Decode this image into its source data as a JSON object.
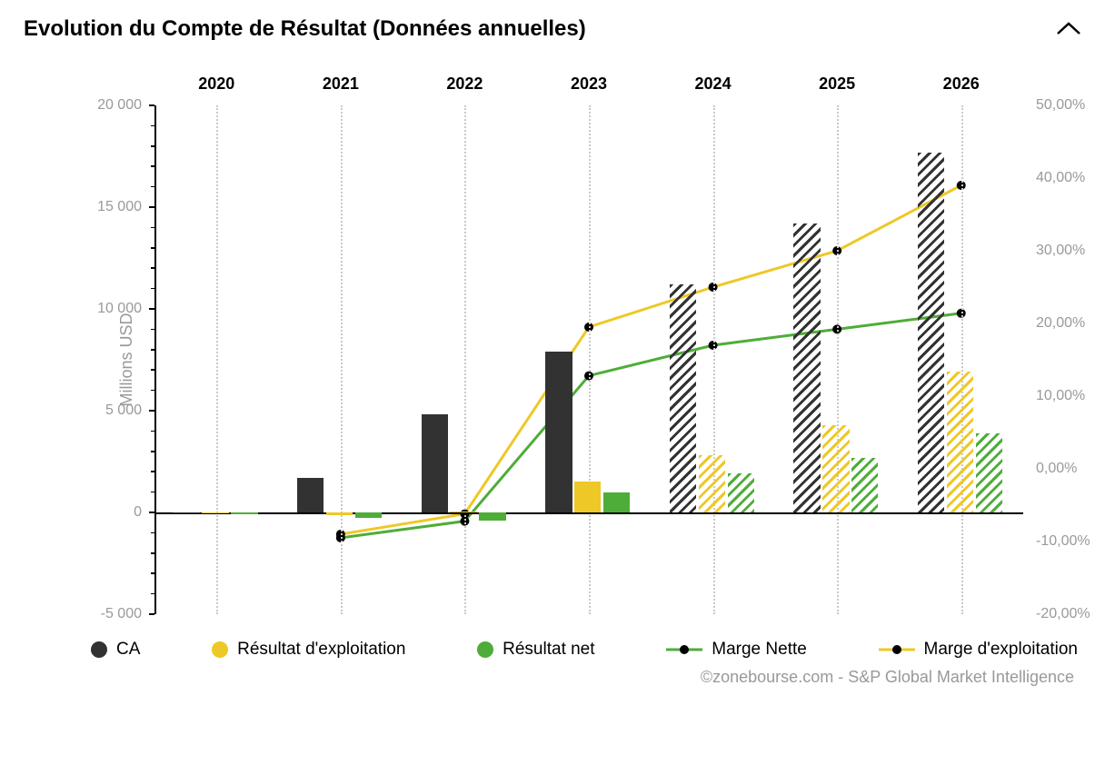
{
  "title": "Evolution du Compte de Résultat (Données annuelles)",
  "attribution": "©zonebourse.com - S&P Global Market Intelligence",
  "chart": {
    "type": "bar+line",
    "background_color": "#ffffff",
    "years": [
      "2020",
      "2021",
      "2022",
      "2023",
      "2024",
      "2025",
      "2026"
    ],
    "solidFrom": 0,
    "hatchedFrom": 4,
    "y_left": {
      "label": "Millions USD",
      "min": -5000,
      "max": 20000,
      "major_ticks": [
        -5000,
        0,
        5000,
        10000,
        15000,
        20000
      ],
      "minor_ticks": [
        -4000,
        -3000,
        -2000,
        -1000,
        1000,
        2000,
        3000,
        4000,
        6000,
        7000,
        8000,
        9000,
        11000,
        12000,
        13000,
        14000,
        16000,
        17000,
        18000,
        19000
      ],
      "tick_labels": [
        "-5 000",
        "0",
        "5 000",
        "10 000",
        "15 000",
        "20 000"
      ],
      "label_color": "#999999",
      "label_fontsize": 18
    },
    "y_right": {
      "min": -20,
      "max": 50,
      "major_ticks": [
        -20,
        -10,
        0,
        10,
        20,
        30,
        40,
        50
      ],
      "tick_labels": [
        "-20,00%",
        "-10,00%",
        "0,00%",
        "10,00%",
        "20,00%",
        "30,00%",
        "40,00%",
        "50,00%"
      ],
      "label_color": "#999999"
    },
    "grid_color": "#c9c9c9",
    "bars": {
      "group_width_frac": 0.7,
      "series": [
        {
          "key": "ca",
          "label": "CA",
          "color": "#323232",
          "values": [
            0,
            1700,
            4800,
            7900,
            11200,
            14200,
            17700
          ]
        },
        {
          "key": "rex",
          "label": "Résultat d'exploitation",
          "color": "#eec826",
          "values": [
            0,
            -150,
            30,
            1500,
            2800,
            4300,
            6900
          ]
        },
        {
          "key": "rn",
          "label": "Résultat net",
          "color": "#4ead38",
          "values": [
            -100,
            -250,
            -400,
            1000,
            1900,
            2700,
            3900
          ]
        }
      ]
    },
    "lines": {
      "marker_color": "#000000",
      "marker_radius": 5,
      "line_width": 3,
      "series": [
        {
          "key": "marge_nette",
          "label": "Marge Nette",
          "color": "#4ead38",
          "values": [
            null,
            -9.5,
            -7.2,
            12.8,
            17.0,
            19.2,
            21.4
          ]
        },
        {
          "key": "marge_exp",
          "label": "Marge d'exploitation",
          "color": "#eec826",
          "values": [
            null,
            -9.0,
            -6.2,
            19.5,
            25.0,
            30.0,
            39.0
          ]
        }
      ]
    },
    "legend": {
      "items": [
        {
          "kind": "dot",
          "color": "#323232",
          "label": "CA"
        },
        {
          "kind": "dot",
          "color": "#eec826",
          "label": "Résultat d'exploitation"
        },
        {
          "kind": "dot",
          "color": "#4ead38",
          "label": "Résultat net"
        },
        {
          "kind": "line",
          "color": "#4ead38",
          "label": "Marge Nette"
        },
        {
          "kind": "line",
          "color": "#eec826",
          "label": "Marge d'exploitation"
        }
      ],
      "fontsize": 19
    }
  }
}
